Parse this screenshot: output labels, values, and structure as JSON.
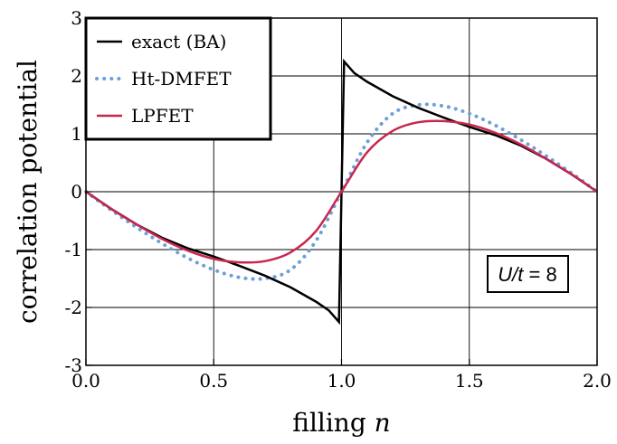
{
  "chart_data": {
    "type": "line",
    "xlabel": "filling",
    "xlabel_var": "n",
    "ylabel": "correlation potential",
    "xlim": [
      0,
      2
    ],
    "ylim": [
      -3,
      3
    ],
    "x_ticks": [
      "0.0",
      "0.5",
      "1.0",
      "1.5",
      "2.0"
    ],
    "y_ticks": [
      "-3",
      "-2",
      "-1",
      "0",
      "1",
      "2",
      "3"
    ],
    "grid": true,
    "legend_position": "top-left",
    "annotation": {
      "var": "U/t",
      "eq": " = 8"
    },
    "series": [
      {
        "name": "exact (BA)",
        "color": "#000000",
        "style": "solid",
        "x": [
          0,
          0.1,
          0.2,
          0.3,
          0.4,
          0.5,
          0.6,
          0.7,
          0.8,
          0.9,
          0.95,
          0.99,
          1.0,
          1.01,
          1.05,
          1.1,
          1.2,
          1.3,
          1.4,
          1.5,
          1.6,
          1.7,
          1.8,
          1.9,
          2.0
        ],
        "y": [
          0,
          -0.3,
          -0.57,
          -0.8,
          -0.98,
          -1.12,
          -1.28,
          -1.45,
          -1.65,
          -1.9,
          -2.05,
          -2.25,
          0,
          2.25,
          2.05,
          1.9,
          1.65,
          1.45,
          1.28,
          1.12,
          0.98,
          0.8,
          0.57,
          0.3,
          0
        ]
      },
      {
        "name": "Ht-DMFET",
        "color": "#6f9fd8",
        "style": "dotted",
        "x": [
          0,
          0.1,
          0.2,
          0.3,
          0.4,
          0.5,
          0.6,
          0.7,
          0.8,
          0.9,
          1.0,
          1.1,
          1.2,
          1.3,
          1.4,
          1.5,
          1.6,
          1.7,
          1.8,
          1.9,
          2.0
        ],
        "y": [
          0,
          -0.32,
          -0.62,
          -0.9,
          -1.15,
          -1.35,
          -1.48,
          -1.5,
          -1.35,
          -0.85,
          0,
          0.85,
          1.35,
          1.5,
          1.48,
          1.35,
          1.15,
          0.9,
          0.62,
          0.32,
          0
        ]
      },
      {
        "name": "LPFET",
        "color": "#c8264e",
        "style": "solid",
        "x": [
          0,
          0.1,
          0.2,
          0.3,
          0.4,
          0.5,
          0.6,
          0.7,
          0.8,
          0.9,
          1.0,
          1.1,
          1.2,
          1.3,
          1.4,
          1.5,
          1.6,
          1.7,
          1.8,
          1.9,
          2.0
        ],
        "y": [
          0,
          -0.3,
          -0.57,
          -0.82,
          -1.02,
          -1.16,
          -1.22,
          -1.2,
          -1.05,
          -0.68,
          0,
          0.68,
          1.05,
          1.2,
          1.22,
          1.16,
          1.02,
          0.82,
          0.57,
          0.3,
          0
        ]
      }
    ]
  }
}
